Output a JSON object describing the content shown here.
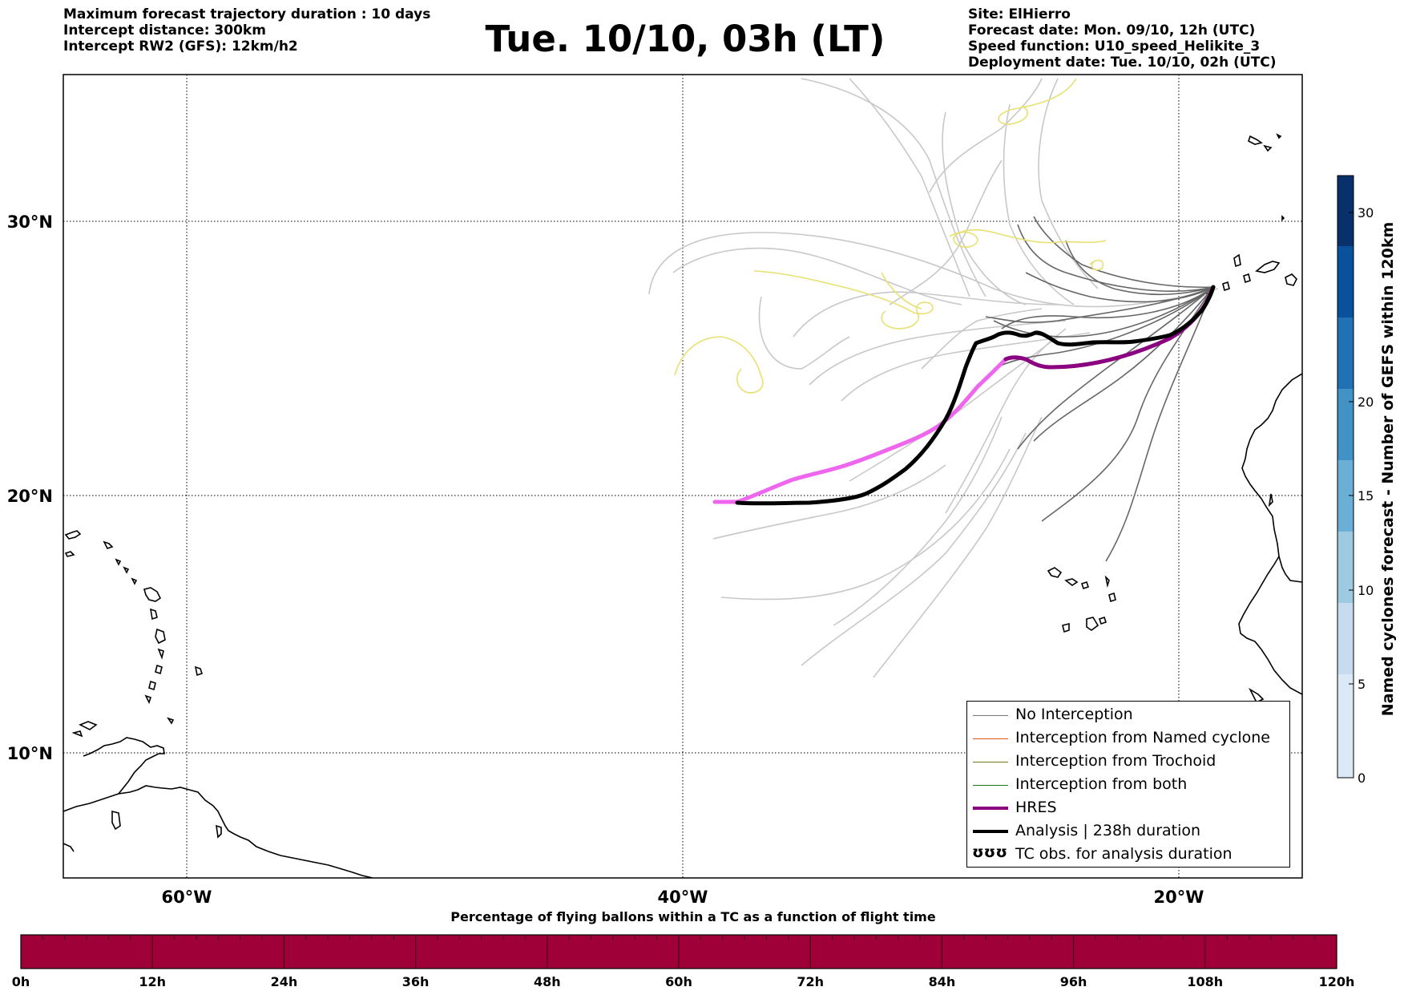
{
  "title": "Tue. 10/10, 03h (LT)",
  "info_left": [
    "Maximum forecast trajectory duration : 10 days",
    "Intercept distance: 300km",
    "Intercept RW2 (GFS):  12km/h2"
  ],
  "info_right": [
    "Site: ElHierro",
    "Forecast date: Mon. 09/10, 12h (UTC)",
    "Speed function: U10_speed_Helikite_3",
    "Deployment date: Tue. 10/10, 02h (UTC)"
  ],
  "map": {
    "lat_labels": [
      "30°N",
      "20°N",
      "10°N"
    ],
    "lon_labels": [
      "60°W",
      "40°W",
      "20°W"
    ]
  },
  "legend": {
    "items": [
      {
        "label": "No Interception",
        "color": "#777777"
      },
      {
        "label": "Interception from Named cyclone",
        "color": "#e8561e"
      },
      {
        "label": "Interception from Trochoid",
        "color": "#7a7a1a"
      },
      {
        "label": "Interception from both",
        "color": "#1a7a1a"
      },
      {
        "label": "HRES",
        "color": "#8b0080"
      },
      {
        "label": "Analysis | 238h duration",
        "color": "#000000"
      }
    ],
    "tc_glyph": "ʊʊʊ",
    "tc_label": "TC obs. for analysis duration"
  },
  "cyclone_colorbar": {
    "title": "Named cyclones forecast - Number of GEFS within 120km",
    "ticks": [
      "0",
      "5",
      "10",
      "15",
      "20",
      "30"
    ],
    "colors": [
      "#dbe9f6",
      "#c6dbef",
      "#9ecae1",
      "#6baed6",
      "#4292c6",
      "#2171b5",
      "#08519c",
      "#08306b"
    ]
  },
  "tc_percentage_bar": {
    "title": "Percentage of flying ballons within a TC as a function of flight time",
    "color": "#9e0037",
    "time_labels": [
      "0h",
      "12h",
      "24h",
      "36h",
      "48h",
      "60h",
      "72h",
      "84h",
      "96h",
      "108h",
      "120h"
    ]
  },
  "colors": {
    "hres_early": "#8b0080",
    "hres_late": "#ee66ee",
    "analysis": "#000000",
    "ensemble_dark": "#666666",
    "ensemble_light": "#c8c8c8",
    "trochoid_yellow": "#e8e070"
  }
}
